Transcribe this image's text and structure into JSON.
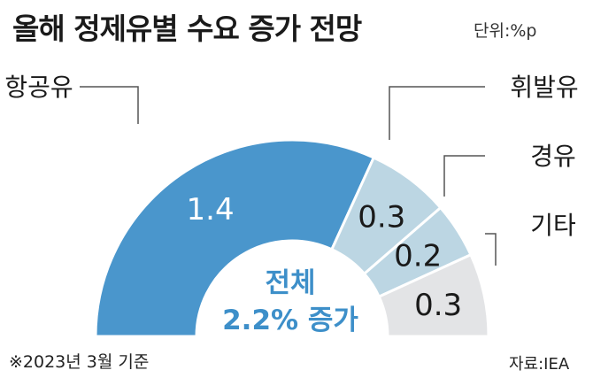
{
  "header": {
    "title": "올해 정제유별 수요 증가 전망",
    "unit": "단위:%p"
  },
  "footer": {
    "note": "※2023년 3월 기준",
    "source": "자료:IEA"
  },
  "chart_data": {
    "type": "pie",
    "variant": "semi-donut",
    "categories": [
      "항공유",
      "휘발유",
      "경유",
      "기타"
    ],
    "values": [
      1.4,
      0.3,
      0.2,
      0.3
    ],
    "value_labels": [
      "1.4",
      "0.3",
      "0.2",
      "0.3"
    ],
    "center_label": [
      "전체",
      "2.2% 증가"
    ],
    "colors": [
      "#4a96cc",
      "#bcd6e3",
      "#bcd6e3",
      "#e3e4e6"
    ],
    "center_text_color": "#3d8fc9",
    "legend": "callout"
  }
}
